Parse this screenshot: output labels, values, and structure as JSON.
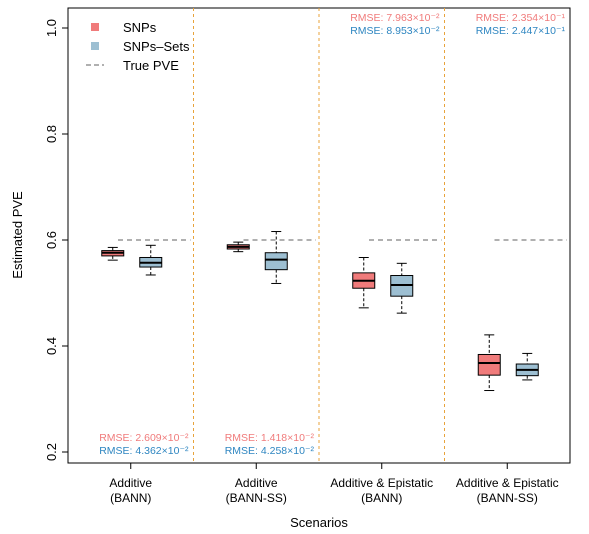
{
  "chart_data": {
    "type": "box",
    "xlabel": "Scenarios",
    "ylabel": "Estimated PVE",
    "ylim": [
      0.15,
      1.02
    ],
    "yticks": [
      "0.2",
      "0.4",
      "0.6",
      "0.8",
      "1.0"
    ],
    "ytick_values": [
      0.2,
      0.4,
      0.6,
      0.8,
      1.0
    ],
    "true_pve": 0.6,
    "legend": {
      "placement": "top-left",
      "items": [
        {
          "label": "SNPs",
          "kind": "box",
          "color": "#F07B7B"
        },
        {
          "label": "SNPs–Sets",
          "kind": "box",
          "color": "#9DBFD2"
        },
        {
          "label": "True PVE",
          "kind": "dashed-line",
          "color": "#808080"
        }
      ]
    },
    "colors": {
      "snps": "#F07B7B",
      "sets": "#9DBFD2",
      "rmse_snps": "#F07B7B",
      "rmse_sets": "#2E86C1",
      "separator": "#E8A33B",
      "true_line": "#808080"
    },
    "groups": [
      {
        "label_line1": "Additive",
        "label_line2": "(BANN)",
        "rmse_position": "bottom",
        "rmse_snps": "RMSE: 2.609×10⁻²",
        "rmse_sets": "RMSE: 4.362×10⁻²",
        "series": [
          {
            "name": "SNPs",
            "min": 0.562,
            "q1": 0.57,
            "median": 0.576,
            "q3": 0.58,
            "max": 0.586
          },
          {
            "name": "SNPs–Sets",
            "min": 0.534,
            "q1": 0.549,
            "median": 0.557,
            "q3": 0.567,
            "max": 0.59
          }
        ]
      },
      {
        "label_line1": "Additive",
        "label_line2": "(BANN-SS)",
        "rmse_position": "bottom",
        "rmse_snps": "RMSE: 1.418×10⁻²",
        "rmse_sets": "RMSE: 4.258×10⁻²",
        "series": [
          {
            "name": "SNPs",
            "min": 0.578,
            "q1": 0.583,
            "median": 0.587,
            "q3": 0.591,
            "max": 0.596
          },
          {
            "name": "SNPs–Sets",
            "min": 0.518,
            "q1": 0.544,
            "median": 0.563,
            "q3": 0.576,
            "max": 0.616
          }
        ]
      },
      {
        "label_line1": "Additive & Epistatic",
        "label_line2": "(BANN)",
        "rmse_position": "top",
        "rmse_snps": "RMSE: 7.963×10⁻²",
        "rmse_sets": "RMSE: 8.953×10⁻²",
        "series": [
          {
            "name": "SNPs",
            "min": 0.472,
            "q1": 0.509,
            "median": 0.523,
            "q3": 0.538,
            "max": 0.567
          },
          {
            "name": "SNPs–Sets",
            "min": 0.462,
            "q1": 0.494,
            "median": 0.515,
            "q3": 0.533,
            "max": 0.556
          }
        ]
      },
      {
        "label_line1": "Additive & Epistatic",
        "label_line2": "(BANN-SS)",
        "rmse_position": "top",
        "rmse_snps": "RMSE: 2.354×10⁻¹",
        "rmse_sets": "RMSE: 2.447×10⁻¹",
        "series": [
          {
            "name": "SNPs",
            "min": 0.316,
            "q1": 0.345,
            "median": 0.368,
            "q3": 0.384,
            "max": 0.421
          },
          {
            "name": "SNPs–Sets",
            "min": 0.336,
            "q1": 0.344,
            "median": 0.355,
            "q3": 0.366,
            "max": 0.386
          }
        ]
      }
    ]
  }
}
